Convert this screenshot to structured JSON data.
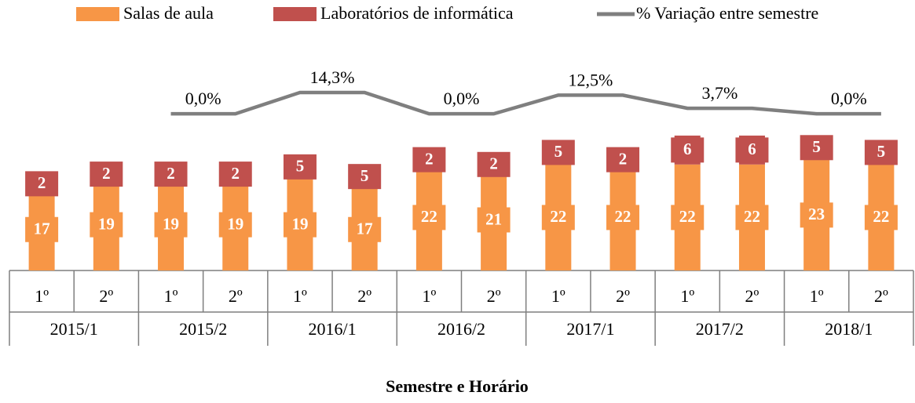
{
  "chart_data": {
    "type": "bar_line",
    "x_label": "Semestre e Horário",
    "categories": [
      "1º",
      "2º",
      "1º",
      "2º",
      "1º",
      "2º",
      "1º",
      "2º",
      "1º",
      "2º",
      "1º",
      "2º",
      "1º",
      "2º"
    ],
    "groups": [
      "2015/1",
      "2015/2",
      "2016/1",
      "2016/2",
      "2017/1",
      "2017/2",
      "2018/1"
    ],
    "stacked": true,
    "ylim": [
      0,
      48
    ],
    "y2lim": [
      -105,
      50
    ],
    "series": [
      {
        "name": "Salas de aula",
        "color": "#f79646",
        "kind": "bar",
        "values": [
          17,
          19,
          19,
          19,
          19,
          17,
          22,
          21,
          22,
          22,
          22,
          22,
          23,
          22
        ]
      },
      {
        "name": "Laboratórios de informática",
        "color": "#c0504d",
        "kind": "bar",
        "values": [
          2,
          2,
          2,
          2,
          5,
          5,
          2,
          2,
          5,
          2,
          6,
          6,
          5,
          5
        ]
      },
      {
        "name": "% Variação entre semestre",
        "color": "#7f7f7f",
        "kind": "line",
        "axis": "y2",
        "values": [
          null,
          null,
          0,
          0,
          14.3,
          14.3,
          0,
          0,
          12.5,
          12.5,
          3.7,
          3.7,
          0,
          0
        ],
        "value_labels": [
          null,
          null,
          "0,0%",
          null,
          "14,3%",
          null,
          "0,0%",
          null,
          "12,5%",
          null,
          "3,7%",
          null,
          "0,0%",
          null
        ]
      }
    ]
  }
}
